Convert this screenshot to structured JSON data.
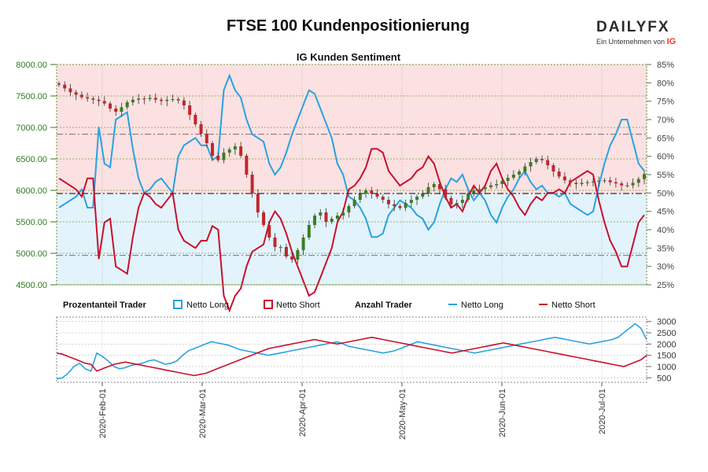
{
  "header": {
    "title": "FTSE 100 Kundenpositionierung",
    "brand_name": "DAILYFX",
    "brand_sub": "Ein Unternehmen von",
    "brand_ig": "IG"
  },
  "colors": {
    "up_candle": "#3a7d22",
    "down_candle": "#c0262d",
    "net_long": "#2aa1e0",
    "net_short": "#c8102e",
    "upper_zone": "#fbe1e1",
    "lower_zone": "#e3f3fb",
    "left_axis": "#2e7d1e",
    "right_axis": "#444444"
  },
  "legend": {
    "prozentanteil_label": "Prozentanteil Trader",
    "anzahl_label": "Anzahl Trader",
    "net_long": "Netto Long",
    "net_short": "Netto Short"
  },
  "chart_data": [
    {
      "type": "line",
      "subtitle": "IG Kunden Sentiment",
      "price_axis": {
        "ylim": [
          4500,
          8000
        ],
        "ticks": [
          "4500.00",
          "5000.00",
          "5500.00",
          "6000.00",
          "6500.00",
          "7000.00",
          "7500.00",
          "8000.00"
        ]
      },
      "percent_axis": {
        "ylim": [
          25,
          85
        ],
        "ticks": [
          "25%",
          "30%",
          "35%",
          "40%",
          "45%",
          "50%",
          "55%",
          "60%",
          "65%",
          "70%",
          "75%",
          "80%",
          "85%"
        ]
      },
      "x_labels": [
        "2020-Feb-01",
        "2020-Mar-01",
        "2020-Apr-01",
        "2020-May-01",
        "2020-Jun-01",
        "2020-Jul-01"
      ],
      "reference_lines": {
        "price": 5950,
        "percent_upper": 66,
        "percent_lower": 33
      },
      "price_series": [
        7680,
        7620,
        7560,
        7520,
        7480,
        7460,
        7440,
        7420,
        7380,
        7300,
        7250,
        7320,
        7400,
        7440,
        7460,
        7450,
        7470,
        7440,
        7420,
        7440,
        7450,
        7430,
        7350,
        7200,
        7050,
        6900,
        6750,
        6550,
        6480,
        6600,
        6650,
        6700,
        6550,
        6250,
        5950,
        5650,
        5450,
        5250,
        5100,
        5100,
        4950,
        4900,
        5050,
        5250,
        5450,
        5600,
        5650,
        5500,
        5550,
        5600,
        5650,
        5750,
        5850,
        5950,
        6000,
        5950,
        5900,
        5850,
        5780,
        5750,
        5720,
        5800,
        5850,
        5900,
        5950,
        6050,
        6100,
        6020,
        5880,
        5780,
        5800,
        5850,
        5950,
        6000,
        6020,
        6050,
        6080,
        6100,
        6150,
        6200,
        6250,
        6300,
        6380,
        6450,
        6500,
        6480,
        6400,
        6300,
        6220,
        6160,
        6120,
        6100,
        6120,
        6130,
        6140,
        6150,
        6160,
        6130,
        6110,
        6080,
        6080,
        6120,
        6180,
        6260
      ],
      "series": [
        {
          "name": "Netto Long",
          "values": [
            46,
            47,
            48,
            49,
            51,
            46,
            46,
            68,
            58,
            57,
            70,
            71,
            72,
            62,
            54,
            50,
            51,
            53,
            54,
            52,
            50,
            60,
            63,
            64,
            65,
            63,
            63,
            59,
            60,
            78,
            82,
            78,
            76,
            70,
            66,
            65,
            64,
            58,
            55,
            57,
            61,
            66,
            70,
            74,
            78,
            77,
            73,
            69,
            65,
            58,
            55,
            49,
            48,
            46,
            43,
            38,
            38,
            39,
            44,
            46,
            48,
            47,
            46,
            44,
            43,
            40,
            42,
            47,
            51,
            54,
            53,
            55,
            51,
            48,
            50,
            48,
            44,
            42,
            46,
            49,
            51,
            54,
            56,
            53,
            51,
            52,
            50,
            50,
            49,
            50,
            47,
            46,
            45,
            44,
            45,
            52,
            58,
            63,
            66,
            70,
            70,
            64,
            58,
            56
          ]
        },
        {
          "name": "Netto Short",
          "values": [
            54,
            53,
            52,
            51,
            49,
            54,
            54,
            32,
            42,
            43,
            30,
            29,
            28,
            38,
            46,
            50,
            49,
            47,
            46,
            48,
            50,
            40,
            37,
            36,
            35,
            37,
            37,
            41,
            40,
            22,
            18,
            22,
            24,
            30,
            34,
            35,
            36,
            42,
            45,
            43,
            39,
            34,
            30,
            26,
            22,
            23,
            27,
            31,
            35,
            42,
            45,
            51,
            52,
            54,
            57,
            62,
            62,
            61,
            56,
            54,
            52,
            53,
            54,
            56,
            57,
            60,
            58,
            53,
            49,
            46,
            47,
            45,
            49,
            52,
            50,
            52,
            56,
            58,
            54,
            51,
            49,
            46,
            44,
            47,
            49,
            48,
            50,
            50,
            51,
            50,
            53,
            54,
            55,
            56,
            55,
            48,
            42,
            37,
            34,
            30,
            30,
            36,
            42,
            44
          ]
        }
      ]
    },
    {
      "type": "line",
      "y_axis": {
        "ylim": [
          300,
          3200
        ],
        "ticks": [
          "500",
          "1000",
          "1500",
          "2000",
          "2500",
          "3000"
        ]
      },
      "series": [
        {
          "name": "Netto Long",
          "values": [
            450,
            500,
            700,
            1000,
            1150,
            900,
            800,
            1600,
            1450,
            1250,
            1000,
            900,
            950,
            1050,
            1100,
            1150,
            1250,
            1300,
            1200,
            1100,
            1150,
            1250,
            1500,
            1700,
            1800,
            1900,
            2000,
            2100,
            2050,
            2000,
            1950,
            1850,
            1750,
            1700,
            1650,
            1600,
            1550,
            1500,
            1550,
            1600,
            1650,
            1700,
            1750,
            1800,
            1850,
            1900,
            1950,
            2000,
            2050,
            2100,
            2000,
            1900,
            1850,
            1800,
            1750,
            1700,
            1650,
            1600,
            1650,
            1700,
            1800,
            1900,
            2000,
            2100,
            2050,
            2000,
            1950,
            1900,
            1850,
            1800,
            1750,
            1700,
            1650,
            1600,
            1650,
            1700,
            1750,
            1800,
            1850,
            1900,
            1950,
            2000,
            2050,
            2100,
            2150,
            2200,
            2250,
            2300,
            2250,
            2200,
            2150,
            2100,
            2050,
            2000,
            2050,
            2100,
            2150,
            2200,
            2300,
            2500,
            2700,
            2900,
            2700,
            2200
          ]
        },
        {
          "name": "Netto Short",
          "values": [
            1600,
            1550,
            1450,
            1350,
            1250,
            1150,
            1100,
            800,
            900,
            1000,
            1100,
            1150,
            1200,
            1150,
            1100,
            1050,
            1000,
            950,
            900,
            850,
            800,
            750,
            700,
            650,
            600,
            650,
            700,
            800,
            900,
            1000,
            1100,
            1200,
            1300,
            1400,
            1500,
            1600,
            1700,
            1800,
            1850,
            1900,
            1950,
            2000,
            2050,
            2100,
            2150,
            2200,
            2150,
            2100,
            2050,
            2000,
            2050,
            2100,
            2150,
            2200,
            2250,
            2300,
            2250,
            2200,
            2150,
            2100,
            2050,
            2000,
            1950,
            1900,
            1850,
            1800,
            1750,
            1700,
            1650,
            1600,
            1650,
            1700,
            1750,
            1800,
            1850,
            1900,
            1950,
            2000,
            2050,
            2000,
            1950,
            1900,
            1850,
            1800,
            1750,
            1700,
            1650,
            1600,
            1550,
            1500,
            1450,
            1400,
            1350,
            1300,
            1250,
            1200,
            1150,
            1100,
            1050,
            1000,
            1100,
            1200,
            1300,
            1500
          ]
        }
      ]
    }
  ]
}
